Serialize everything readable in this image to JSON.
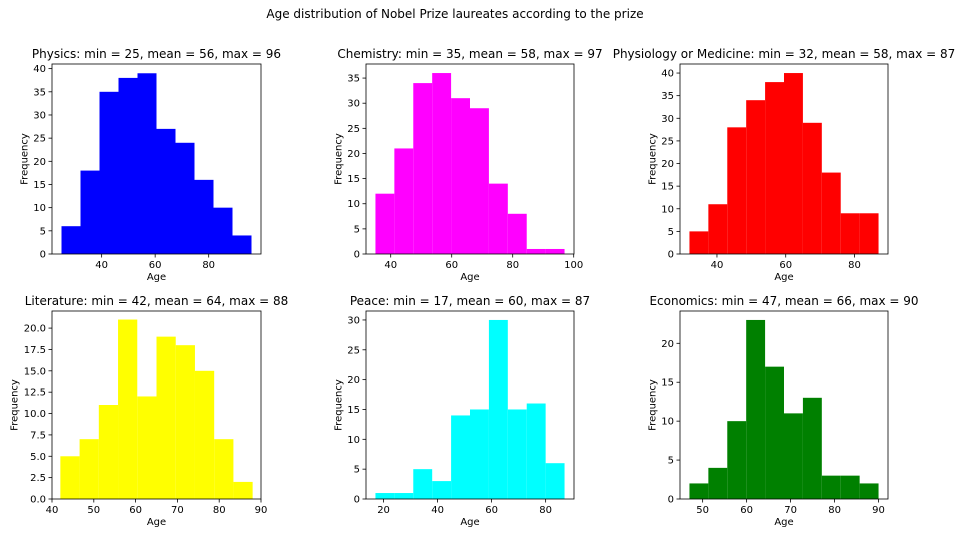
{
  "suptitle": "Age distribution of Nobel Prize laureates according to the prize",
  "chart_data": [
    {
      "type": "bar",
      "title": "Physics: min = 25, mean = 56, max = 96",
      "xlabel": "Age",
      "ylabel": "Frequency",
      "color": "#0000ff",
      "bin_edges": [
        25,
        32.1,
        39.2,
        46.3,
        53.4,
        60.5,
        67.6,
        74.7,
        81.8,
        88.9,
        96
      ],
      "values": [
        6,
        18,
        35,
        38,
        39,
        27,
        24,
        16,
        10,
        4
      ],
      "xlim": [
        21.45,
        99.55
      ],
      "ylim": [
        0,
        41
      ],
      "xticks": [
        40,
        60,
        80
      ],
      "xticklabels": [
        "40",
        "60",
        "80"
      ],
      "yticks": [
        0,
        5,
        10,
        15,
        20,
        25,
        30,
        35,
        40
      ],
      "yticklabels": [
        "0",
        "5",
        "10",
        "15",
        "20",
        "25",
        "30",
        "35",
        "40"
      ]
    },
    {
      "type": "bar",
      "title": "Chemistry: min = 35, mean = 58, max = 97",
      "xlabel": "Age",
      "ylabel": "Frequency",
      "color": "#ff00ff",
      "bin_edges": [
        35,
        41.2,
        47.4,
        53.6,
        59.8,
        66,
        72.2,
        78.4,
        84.6,
        90.8,
        97
      ],
      "values": [
        12,
        21,
        34,
        36,
        31,
        29,
        14,
        8,
        1,
        1
      ],
      "xlim": [
        31.9,
        100.1
      ],
      "ylim": [
        0,
        37.8
      ],
      "xticks": [
        40,
        60,
        80,
        100
      ],
      "xticklabels": [
        "40",
        "60",
        "80",
        "100"
      ],
      "yticks": [
        0,
        5,
        10,
        15,
        20,
        25,
        30,
        35
      ],
      "yticklabels": [
        "0",
        "5",
        "10",
        "15",
        "20",
        "25",
        "30",
        "35"
      ]
    },
    {
      "type": "bar",
      "title": "Physiology or Medicine: min = 32, mean = 58, max = 87",
      "xlabel": "Age",
      "ylabel": "Frequency",
      "color": "#ff0000",
      "bin_edges": [
        32,
        37.5,
        43,
        48.5,
        54,
        59.5,
        65,
        70.5,
        76,
        81.5,
        87
      ],
      "values": [
        5,
        11,
        28,
        34,
        38,
        40,
        29,
        18,
        9,
        9
      ],
      "xlim": [
        29.25,
        89.75
      ],
      "ylim": [
        0,
        42
      ],
      "xticks": [
        40,
        60,
        80
      ],
      "xticklabels": [
        "40",
        "60",
        "80"
      ],
      "yticks": [
        0,
        5,
        10,
        15,
        20,
        25,
        30,
        35,
        40
      ],
      "yticklabels": [
        "0",
        "5",
        "10",
        "15",
        "20",
        "25",
        "30",
        "35",
        "40"
      ]
    },
    {
      "type": "bar",
      "title": "Literature: min = 42, mean = 64, max = 88",
      "xlabel": "Age",
      "ylabel": "Frequency",
      "color": "#ffff00",
      "bin_edges": [
        42,
        46.6,
        51.2,
        55.8,
        60.4,
        65,
        69.6,
        74.2,
        78.8,
        83.4,
        88
      ],
      "values": [
        5,
        7,
        11,
        21,
        12,
        19,
        18,
        15,
        7,
        2
      ],
      "xlim": [
        40,
        90
      ],
      "ylim": [
        0,
        22
      ],
      "xticks": [
        40,
        50,
        60,
        70,
        80,
        90
      ],
      "xticklabels": [
        "40",
        "50",
        "60",
        "70",
        "80",
        "90"
      ],
      "yticks": [
        0,
        2.5,
        5,
        7.5,
        10,
        12.5,
        15,
        17.5,
        20
      ],
      "yticklabels": [
        "0.0",
        "2.5",
        "5.0",
        "7.5",
        "10.0",
        "12.5",
        "15.0",
        "17.5",
        "20.0"
      ]
    },
    {
      "type": "bar",
      "title": "Peace: min = 17, mean = 60, max = 87",
      "xlabel": "Age",
      "ylabel": "Frequency",
      "color": "#00ffff",
      "bin_edges": [
        17,
        24,
        31,
        38,
        45,
        52,
        59,
        66,
        73,
        80,
        87
      ],
      "values": [
        1,
        1,
        5,
        3,
        14,
        15,
        30,
        15,
        16,
        6
      ],
      "xlim": [
        13.5,
        90.5
      ],
      "ylim": [
        0,
        31.5
      ],
      "xticks": [
        20,
        40,
        60,
        80
      ],
      "xticklabels": [
        "20",
        "40",
        "60",
        "80"
      ],
      "yticks": [
        0,
        5,
        10,
        15,
        20,
        25,
        30
      ],
      "yticklabels": [
        "0",
        "5",
        "10",
        "15",
        "20",
        "25",
        "30"
      ]
    },
    {
      "type": "bar",
      "title": "Economics: min = 47, mean = 66, max = 90",
      "xlabel": "Age",
      "ylabel": "Frequency",
      "color": "#008000",
      "bin_edges": [
        47,
        51.3,
        55.6,
        59.9,
        64.2,
        68.5,
        72.8,
        77.1,
        81.4,
        85.7,
        90
      ],
      "values": [
        2,
        4,
        10,
        23,
        17,
        11,
        13,
        3,
        3,
        2
      ],
      "xlim": [
        44.85,
        92.15
      ],
      "ylim": [
        0,
        24.15
      ],
      "xticks": [
        50,
        60,
        70,
        80,
        90
      ],
      "xticklabels": [
        "50",
        "60",
        "70",
        "80",
        "90"
      ],
      "yticks": [
        0,
        5,
        10,
        15,
        20
      ],
      "yticklabels": [
        "0",
        "5",
        "10",
        "15",
        "20"
      ]
    }
  ]
}
